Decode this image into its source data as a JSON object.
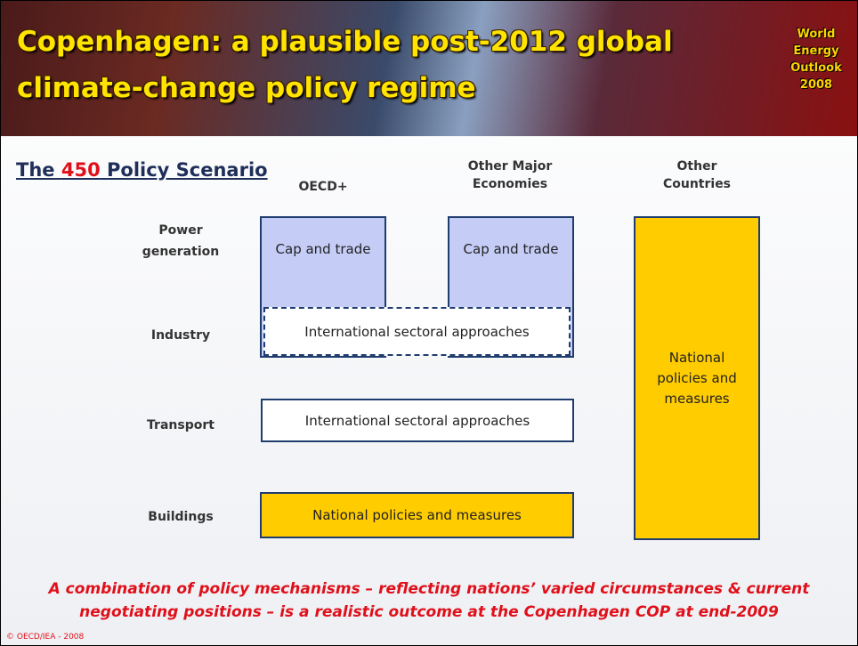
{
  "header": {
    "title": [
      "Copenhagen: a plausible post-2012 global",
      "climate-change policy regime"
    ],
    "logo": [
      "World",
      "Energy",
      "Outlook",
      "2008"
    ]
  },
  "subtitle": {
    "prefix": "The",
    "highlight": "450",
    "suffix": "Policy Scenario"
  },
  "columns": [
    "OECD+",
    "Other Major Economies",
    "Other Countries"
  ],
  "rows": [
    "Power generation",
    "Industry",
    "Transport",
    "Buildings"
  ],
  "boxes": {
    "cap_oecd": "Cap and trade",
    "cap_major": "Cap and trade",
    "industry": "International sectoral approaches",
    "transport": "International sectoral approaches",
    "buildings": "National policies and measures",
    "other_countries": "National policies and measures"
  },
  "footer": {
    "note": [
      "A combination of policy mechanisms – reflecting nations’ varied circumstances & current",
      "negotiating positions – is a realistic outcome at the Copenhagen COP at end-2009"
    ],
    "copyright": "© OECD/IEA - 2008"
  }
}
